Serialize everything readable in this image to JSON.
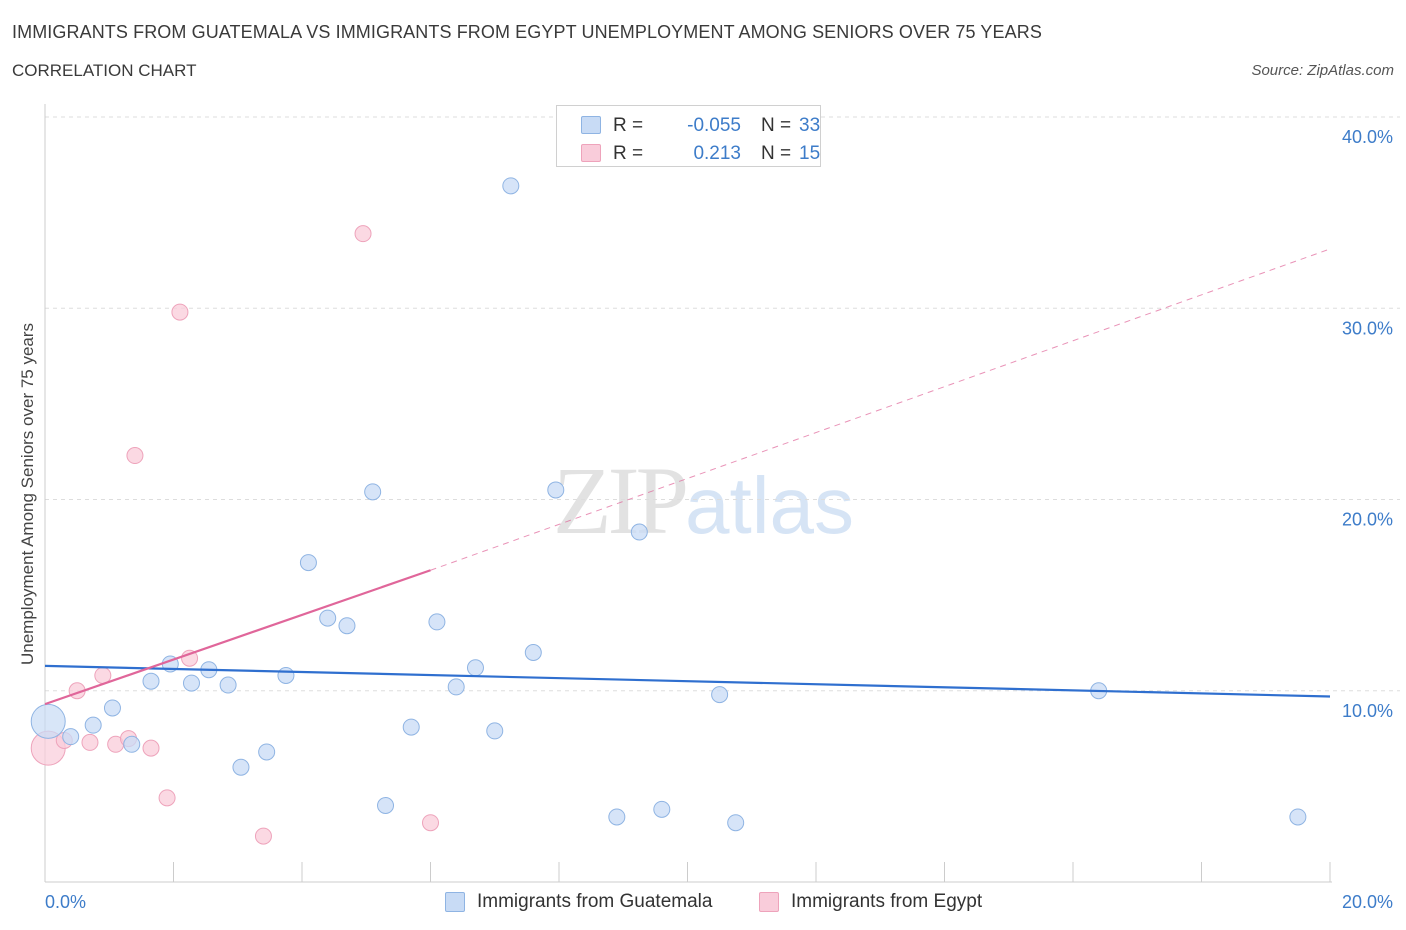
{
  "header": {
    "title": "IMMIGRANTS FROM GUATEMALA VS IMMIGRANTS FROM EGYPT UNEMPLOYMENT AMONG SENIORS OVER 75 YEARS",
    "subtitle": "CORRELATION CHART",
    "source": "Source: ZipAtlas.com"
  },
  "watermark": {
    "part1": "ZIP",
    "part2": "atlas"
  },
  "legend_top": {
    "rows": [
      {
        "r_label": "R =",
        "r_value": "-0.055",
        "n_label": "N =",
        "n_value": "33"
      },
      {
        "r_label": "R =",
        "r_value": "0.213",
        "n_label": "N =",
        "n_value": "15"
      }
    ]
  },
  "legend_bottom": {
    "items": [
      {
        "label": "Immigrants from Guatemala"
      },
      {
        "label": "Immigrants from Egypt"
      }
    ]
  },
  "colors": {
    "blue_fill": "#c8dbf5",
    "blue_stroke": "#8fb4e3",
    "blue_line": "#2f6fcf",
    "pink_fill": "#f9ccda",
    "pink_stroke": "#eea3bb",
    "pink_line": "#e0669a",
    "axis_label": "#3d7cc9",
    "grid": "#dddddd"
  },
  "chart_data": {
    "type": "scatter",
    "title": "IMMIGRANTS FROM GUATEMALA VS IMMIGRANTS FROM EGYPT UNEMPLOYMENT AMONG SENIORS OVER 75 YEARS",
    "xlabel": "",
    "ylabel": "Unemployment Among Seniors over 75 years",
    "xlim": [
      0,
      20
    ],
    "ylim": [
      0,
      40
    ],
    "x_tick_labels": [
      "0.0%",
      "20.0%"
    ],
    "y_ticks": [
      10,
      20,
      30,
      40
    ],
    "y_tick_labels": [
      "10.0%",
      "20.0%",
      "30.0%",
      "40.0%"
    ],
    "grid": true,
    "series": [
      {
        "name": "Immigrants from Guatemala",
        "r": -0.055,
        "n": 33,
        "trend": {
          "x0": 0,
          "y0": 11.3,
          "x1": 20,
          "y1": 9.7
        },
        "points": [
          {
            "x": 0.05,
            "y": 8.4,
            "big": true
          },
          {
            "x": 0.4,
            "y": 7.6
          },
          {
            "x": 0.75,
            "y": 8.2
          },
          {
            "x": 1.05,
            "y": 9.1
          },
          {
            "x": 1.35,
            "y": 7.2
          },
          {
            "x": 1.65,
            "y": 10.5
          },
          {
            "x": 1.95,
            "y": 11.4
          },
          {
            "x": 2.28,
            "y": 10.4
          },
          {
            "x": 2.55,
            "y": 11.1
          },
          {
            "x": 2.85,
            "y": 10.3
          },
          {
            "x": 3.05,
            "y": 6.0
          },
          {
            "x": 3.45,
            "y": 6.8
          },
          {
            "x": 3.75,
            "y": 10.8
          },
          {
            "x": 4.1,
            "y": 16.7
          },
          {
            "x": 4.4,
            "y": 13.8
          },
          {
            "x": 4.7,
            "y": 13.4
          },
          {
            "x": 5.1,
            "y": 20.4
          },
          {
            "x": 5.3,
            "y": 4.0
          },
          {
            "x": 5.7,
            "y": 8.1
          },
          {
            "x": 6.1,
            "y": 13.6
          },
          {
            "x": 6.4,
            "y": 10.2
          },
          {
            "x": 6.7,
            "y": 11.2
          },
          {
            "x": 7.0,
            "y": 7.9
          },
          {
            "x": 7.25,
            "y": 36.4
          },
          {
            "x": 7.6,
            "y": 12.0
          },
          {
            "x": 7.95,
            "y": 20.5
          },
          {
            "x": 8.9,
            "y": 3.4
          },
          {
            "x": 9.25,
            "y": 18.3
          },
          {
            "x": 9.6,
            "y": 3.8
          },
          {
            "x": 10.5,
            "y": 9.8
          },
          {
            "x": 10.75,
            "y": 3.1
          },
          {
            "x": 16.4,
            "y": 10.0
          },
          {
            "x": 19.5,
            "y": 3.4
          }
        ]
      },
      {
        "name": "Immigrants from Egypt",
        "r": 0.213,
        "n": 15,
        "trend": {
          "x0": 0,
          "y0": 9.3,
          "x1": 6.0,
          "y1": 16.3,
          "dash_x1": 20,
          "dash_y1": 33.1
        },
        "points": [
          {
            "x": 0.05,
            "y": 7.0,
            "big": true
          },
          {
            "x": 0.3,
            "y": 7.4
          },
          {
            "x": 0.5,
            "y": 10.0
          },
          {
            "x": 0.7,
            "y": 7.3
          },
          {
            "x": 0.9,
            "y": 10.8
          },
          {
            "x": 1.1,
            "y": 7.2
          },
          {
            "x": 1.3,
            "y": 7.5
          },
          {
            "x": 1.4,
            "y": 22.3
          },
          {
            "x": 1.65,
            "y": 7.0
          },
          {
            "x": 1.9,
            "y": 4.4
          },
          {
            "x": 2.1,
            "y": 29.8
          },
          {
            "x": 2.25,
            "y": 11.7
          },
          {
            "x": 3.4,
            "y": 2.4
          },
          {
            "x": 4.95,
            "y": 33.9
          },
          {
            "x": 6.0,
            "y": 3.1
          }
        ]
      }
    ]
  }
}
